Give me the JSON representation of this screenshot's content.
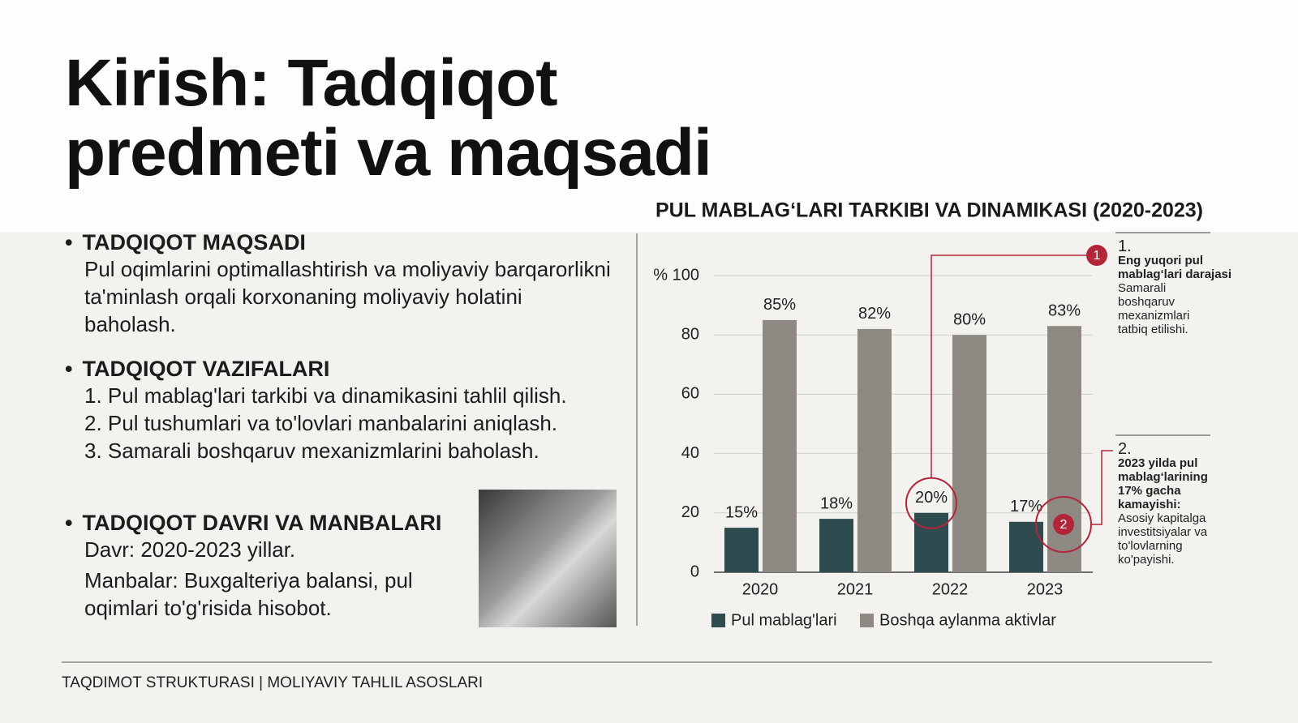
{
  "title": "Kirish: Tadqiqot predmeti va maqsadi",
  "sections": [
    {
      "heading": "TADQIQOT MAQSADI",
      "lines": [
        "Pul oqimlarini optimallashtirish va moliyaviy barqarorlikni ta'minlash orqali korxonaning moliyaviy holatini baholash."
      ]
    },
    {
      "heading": "TADQIQOT VAZIFALARI",
      "lines": [
        "1. Pul mablag'lari tarkibi va dinamikasini tahlil qilish.",
        "2. Pul tushumlari va to'lovlari manbalarini aniqlash.",
        "3. Samarali boshqaruv mexanizmlarini baholash."
      ]
    },
    {
      "heading": "TADQIQOT DAVRI VA MANBALARI",
      "lines": [
        "Davr: 2020-2023 yillar.",
        "Manbalar: Buxgalteriya balansi, pul oqimlari to'g'risida hisobot."
      ]
    }
  ],
  "footer": "TAQDIMOT STRUKTURASI | MOLIYAVIY TAHLIL ASOSLARI",
  "chart_data": {
    "type": "bar",
    "title": "PUL MABLAG‘LARI TARKIBI VA DINAMIKASI (2020-2023)",
    "categories": [
      "2020",
      "2021",
      "2022",
      "2023"
    ],
    "series": [
      {
        "name": "Pul mablag'lari",
        "color": "#2e4b50",
        "values": [
          15,
          18,
          20,
          17
        ],
        "value_labels": [
          "15%",
          "18%",
          "20%",
          "17%"
        ]
      },
      {
        "name": "Boshqa aylanma aktivlar",
        "color": "#8e8a83",
        "values": [
          85,
          82,
          80,
          83
        ],
        "value_labels": [
          "85%",
          "82%",
          "80%",
          "83%"
        ]
      }
    ],
    "ylim": [
      0,
      100
    ],
    "yticks": [
      0,
      20,
      40,
      60,
      80,
      {
        "value": 100,
        "label": "% 100"
      }
    ],
    "grid": true,
    "annotations": [
      {
        "marker": "1",
        "number": "1.",
        "heading": "Eng yuqori pul mablag‘lari darajasi",
        "text": "Samarali boshqaruv mexanizmlari tatbiq etilishi."
      },
      {
        "marker": "2",
        "number": "2.",
        "heading": "2023 yilda pul mablag‘larining 17% gacha kamayishi:",
        "text": "Asosiy kapitalga investitsiyalar va to'lovlarning ko'payishi."
      }
    ]
  }
}
